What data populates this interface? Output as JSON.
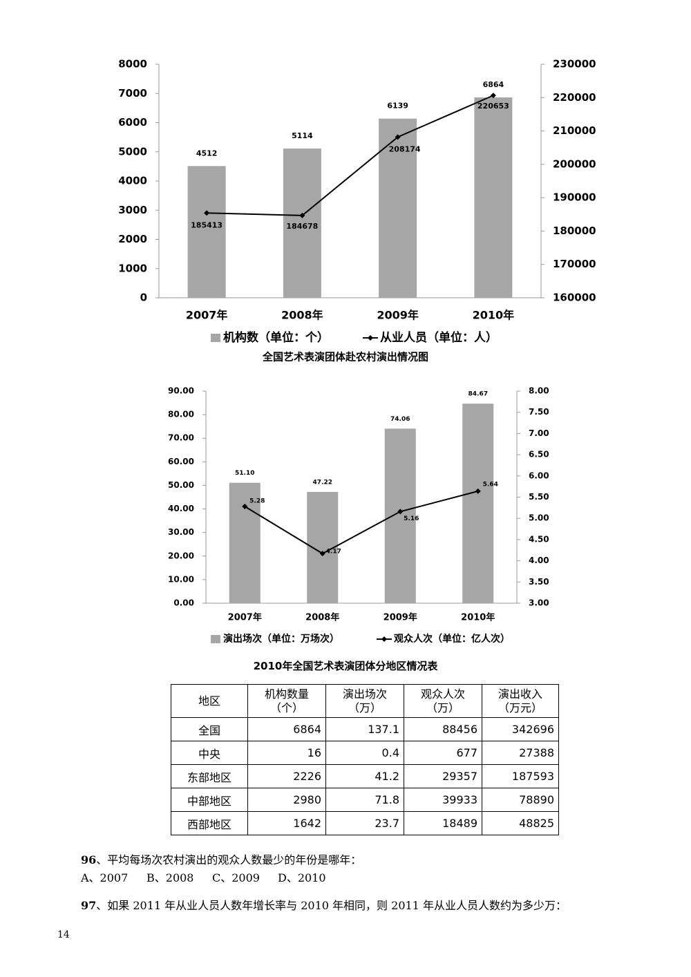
{
  "chart_data": [
    {
      "type": "bar",
      "categories": [
        "2007年",
        "2008年",
        "2009年",
        "2010年"
      ],
      "series": [
        {
          "name": "机构数（单位：个）",
          "type": "bar",
          "color": "#a6a6a6",
          "values": [
            4512,
            5114,
            6139,
            6864
          ]
        },
        {
          "name": "从业人员（单位：人）",
          "type": "line",
          "axis": "y2",
          "color": "#000000",
          "values": [
            185413,
            184678,
            208174,
            220653
          ]
        }
      ],
      "ylim": [
        0,
        8000
      ],
      "yticks": [
        0,
        1000,
        2000,
        3000,
        4000,
        5000,
        6000,
        7000,
        8000
      ],
      "y2lim": [
        160000,
        230000
      ],
      "y2ticks": [
        160000,
        170000,
        180000,
        190000,
        200000,
        210000,
        220000,
        230000
      ],
      "grid": false
    },
    {
      "type": "bar",
      "title": "全国艺术表演团体赴农村演出情况图",
      "categories": [
        "2007年",
        "2008年",
        "2009年",
        "2010年"
      ],
      "series": [
        {
          "name": "演出场次（单位：万场次）",
          "type": "bar",
          "color": "#a6a6a6",
          "values": [
            51.1,
            47.22,
            74.06,
            84.67
          ],
          "value_labels": [
            "51.10",
            "47.22",
            "74.06",
            "84.67"
          ]
        },
        {
          "name": "观众人次（单位：亿人次）",
          "type": "line",
          "axis": "y2",
          "color": "#000000",
          "values": [
            5.28,
            4.17,
            5.16,
            5.64
          ]
        }
      ],
      "ylim": [
        0,
        90
      ],
      "yticks": [
        {
          "value": 0,
          "label": "0.00"
        },
        {
          "value": 10,
          "label": "10.00"
        },
        {
          "value": 20,
          "label": "20.00"
        },
        {
          "value": 30,
          "label": "30.00"
        },
        {
          "value": 40,
          "label": "40.00"
        },
        {
          "value": 50,
          "label": "50.00"
        },
        {
          "value": 60,
          "label": "60.00"
        },
        {
          "value": 70,
          "label": "70.00"
        },
        {
          "value": 80,
          "label": "80.00"
        },
        {
          "value": 90,
          "label": "90.00"
        }
      ],
      "y2lim": [
        3,
        8
      ],
      "y2ticks": [
        {
          "value": 3,
          "label": "3.00"
        },
        {
          "value": 3.5,
          "label": "3.50"
        },
        {
          "value": 4,
          "label": "4.00"
        },
        {
          "value": 4.5,
          "label": "4.50"
        },
        {
          "value": 5,
          "label": "5.00"
        },
        {
          "value": 5.5,
          "label": "5.50"
        },
        {
          "value": 6,
          "label": "6.00"
        },
        {
          "value": 6.5,
          "label": "6.50"
        },
        {
          "value": 7,
          "label": "7.00"
        },
        {
          "value": 7.5,
          "label": "7.50"
        },
        {
          "value": 8,
          "label": "8.00"
        }
      ],
      "grid": false
    }
  ],
  "table": {
    "caption": "2010年全国艺术表演团体分地区情况表",
    "header": [
      [
        "地区"
      ],
      [
        "机构数量",
        "（个）"
      ],
      [
        "演出场次",
        "（万）"
      ],
      [
        "观众人次",
        "（万）"
      ],
      [
        "演出收入",
        "（万元）"
      ]
    ],
    "rows": [
      [
        "全国",
        6864,
        137.1,
        88456,
        342696
      ],
      [
        "中央",
        16,
        0.4,
        677,
        27388
      ],
      [
        "东部地区",
        2226,
        41.2,
        29357,
        187593
      ],
      [
        "中部地区",
        2980,
        71.8,
        39933,
        78890
      ],
      [
        "西部地区",
        1642,
        23.7,
        18489,
        48825
      ]
    ]
  },
  "questions": [
    {
      "number": "96",
      "text": "、平均每场次农村演出的观众人数最少的年份是哪年：",
      "options": [
        "A、2007",
        "B、2008",
        "C、2009",
        "D、2010"
      ]
    },
    {
      "number": "97",
      "text": "、如果 2011 年从业人员人数年增长率与 2010 年相同，则 2011 年从业人员人数约为多少万："
    }
  ],
  "page_number": "14"
}
